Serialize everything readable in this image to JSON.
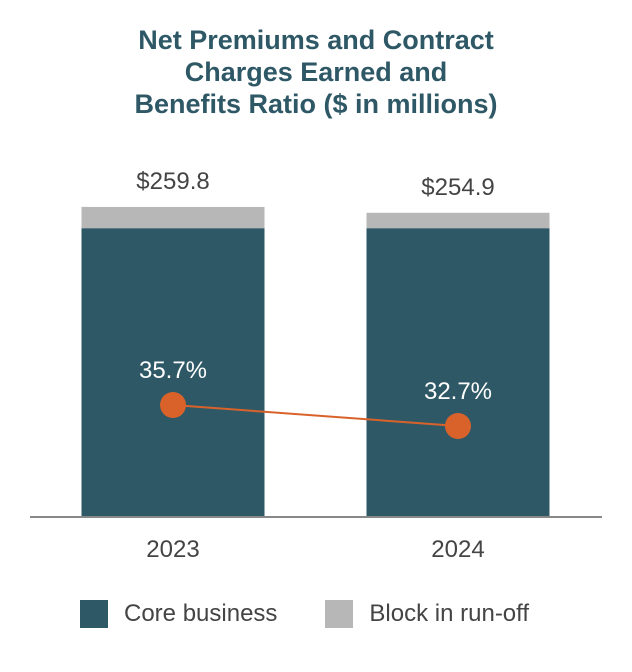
{
  "title_lines": [
    "Net Premiums and Contract",
    "Charges Earned and",
    "Benefits Ratio ($ in millions)"
  ],
  "colors": {
    "core": "#2e5866",
    "runoff": "#b7b7b7",
    "ratio": "#d9622b",
    "axis": "#888888",
    "text": "#444444"
  },
  "chart_data": {
    "type": "bar",
    "stacked": true,
    "categories": [
      "2023",
      "2024"
    ],
    "totals": [
      259.8,
      254.9
    ],
    "total_labels": [
      "$259.8",
      "$254.9"
    ],
    "series": [
      {
        "name": "Core business",
        "values": [
          242.0,
          242.0
        ]
      },
      {
        "name": "Block in run-off",
        "values": [
          17.8,
          12.9
        ]
      }
    ],
    "line": {
      "values": [
        35.7,
        32.7
      ],
      "labels": [
        "35.7%",
        "32.7%"
      ]
    },
    "legend_position": "bottom"
  }
}
